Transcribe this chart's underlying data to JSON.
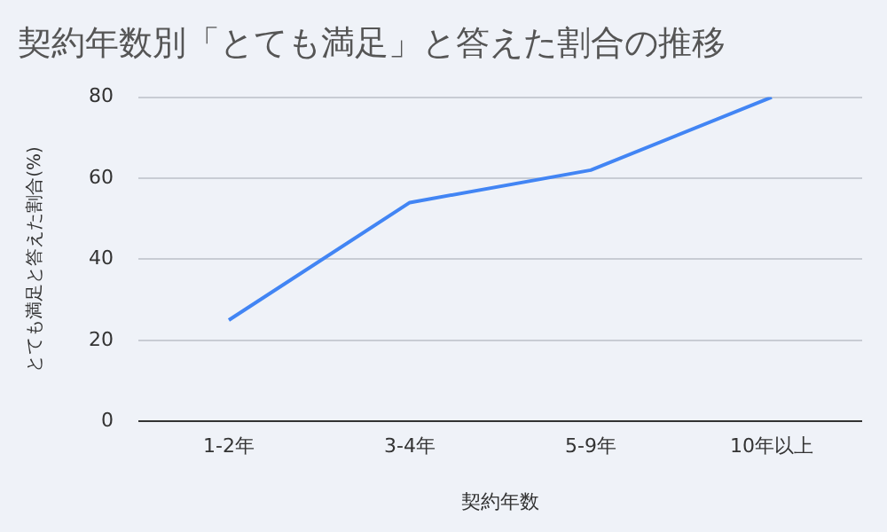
{
  "chart_data": {
    "type": "line",
    "title": "契約年数別「とても満足」と答えた割合の推移",
    "xlabel": "契約年数",
    "ylabel": "とても満足と答えた割合(%)",
    "categories": [
      "1-2年",
      "3-4年",
      "5-9年",
      "10年以上"
    ],
    "series": [
      {
        "color": "#4285f4",
        "values": [
          25,
          54,
          62,
          80
        ]
      }
    ],
    "ylim": [
      0,
      80
    ],
    "yticks": [
      0,
      20,
      40,
      60,
      80
    ],
    "grid": "y",
    "legend": false,
    "marker": "none",
    "line_style": "solid"
  }
}
